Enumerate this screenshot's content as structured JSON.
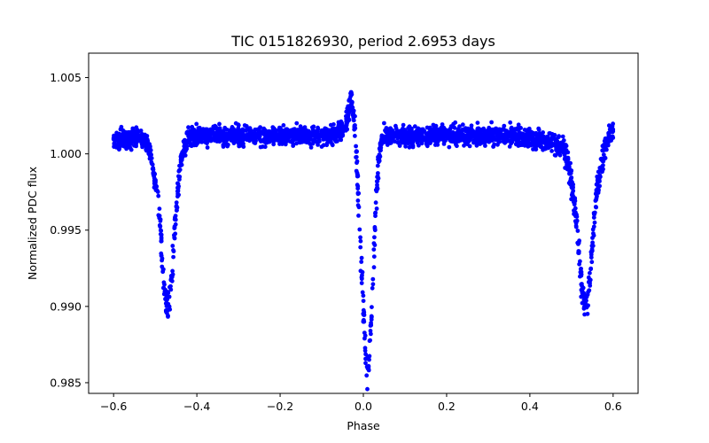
{
  "chart_data": {
    "type": "scatter",
    "title": "TIC 0151826930, period 2.6953 days",
    "xlabel": "Phase",
    "ylabel": "Normalized PDC flux",
    "xlim": [
      -0.66,
      0.66
    ],
    "ylim": [
      0.9843,
      1.0066
    ],
    "xticks": [
      -0.6,
      -0.4,
      -0.2,
      0.0,
      0.2,
      0.4,
      0.6
    ],
    "xtick_labels": [
      "−0.6",
      "−0.4",
      "−0.2",
      "0.0",
      "0.2",
      "0.4",
      "0.6"
    ],
    "yticks": [
      0.985,
      0.99,
      0.995,
      1.0,
      1.005
    ],
    "ytick_labels": [
      "0.985",
      "0.990",
      "0.995",
      "1.000",
      "1.005"
    ],
    "grid": false,
    "marker_color": "#0000ff",
    "series": [
      {
        "x": [
          -0.6,
          -0.58,
          -0.56,
          -0.54,
          -0.52,
          -0.51,
          -0.5,
          -0.49,
          -0.485,
          -0.48,
          -0.475,
          -0.47,
          -0.465,
          -0.46,
          -0.455,
          -0.45,
          -0.445,
          -0.44,
          -0.43,
          -0.42,
          -0.4,
          -0.35,
          -0.3,
          -0.25,
          -0.2,
          -0.15,
          -0.1,
          -0.07,
          -0.05,
          -0.04,
          -0.035,
          -0.03,
          -0.025,
          -0.02,
          -0.015,
          -0.01,
          -0.005,
          0.0,
          0.005,
          0.01,
          0.015,
          0.02,
          0.025,
          0.03,
          0.035,
          0.04,
          0.05,
          0.07,
          0.1,
          0.15,
          0.2,
          0.25,
          0.3,
          0.35,
          0.4,
          0.45,
          0.48,
          0.49,
          0.5,
          0.51,
          0.515,
          0.52,
          0.525,
          0.53,
          0.535,
          0.54,
          0.545,
          0.55,
          0.555,
          0.56,
          0.57,
          0.58,
          0.59,
          0.6
        ],
        "y": [
          1.001,
          1.001,
          1.001,
          1.001,
          1.0008,
          0.9998,
          0.998,
          0.996,
          0.994,
          0.992,
          0.9905,
          0.99,
          0.9905,
          0.992,
          0.994,
          0.996,
          0.998,
          0.9995,
          1.0005,
          1.001,
          1.0012,
          1.0012,
          1.0012,
          1.0012,
          1.0012,
          1.0012,
          1.0012,
          1.0013,
          1.0016,
          1.0022,
          1.0028,
          1.0035,
          1.003,
          1.0015,
          0.999,
          0.996,
          0.9925,
          0.9895,
          0.987,
          0.9855,
          0.987,
          0.99,
          0.9935,
          0.9965,
          0.999,
          1.0005,
          1.0012,
          1.0012,
          1.0012,
          1.0012,
          1.0012,
          1.0012,
          1.0012,
          1.0012,
          1.001,
          1.0008,
          1.0005,
          0.9995,
          0.998,
          0.996,
          0.9945,
          0.993,
          0.9915,
          0.9905,
          0.99,
          0.9905,
          0.992,
          0.994,
          0.996,
          0.9975,
          0.999,
          1.0003,
          1.0012,
          1.0015
        ],
        "spread": [
          0.001,
          0.001,
          0.001,
          0.001,
          0.001,
          0.0012,
          0.0014,
          0.0016,
          0.0016,
          0.0016,
          0.0016,
          0.0016,
          0.0016,
          0.0016,
          0.0016,
          0.0016,
          0.0014,
          0.0012,
          0.0011,
          0.001,
          0.001,
          0.001,
          0.001,
          0.001,
          0.001,
          0.001,
          0.001,
          0.001,
          0.0011,
          0.0012,
          0.0012,
          0.0012,
          0.0014,
          0.0016,
          0.0018,
          0.0018,
          0.0018,
          0.0018,
          0.0018,
          0.0018,
          0.0018,
          0.0018,
          0.0018,
          0.0016,
          0.0014,
          0.0012,
          0.001,
          0.001,
          0.001,
          0.001,
          0.001,
          0.001,
          0.001,
          0.001,
          0.001,
          0.001,
          0.0012,
          0.0014,
          0.0016,
          0.0016,
          0.0016,
          0.0016,
          0.0016,
          0.0016,
          0.0016,
          0.0016,
          0.0016,
          0.0016,
          0.0016,
          0.0016,
          0.0014,
          0.0012,
          0.0011,
          0.001
        ]
      }
    ]
  }
}
